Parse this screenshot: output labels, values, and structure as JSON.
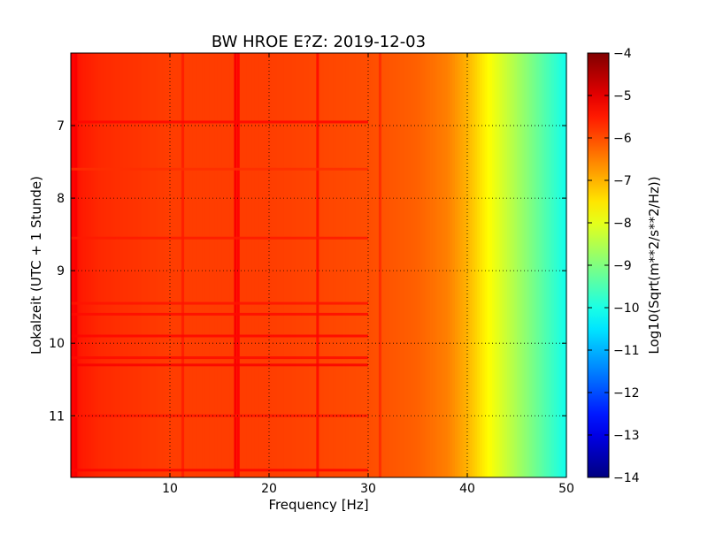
{
  "chart_data": {
    "type": "heatmap",
    "title": "BW HROE E?Z: 2019-12-03",
    "xlabel": "Frequency [Hz]",
    "ylabel": "Lokalzeit (UTC + 1 Stunde)",
    "xlim": [
      0,
      50
    ],
    "ylim": [
      11.85,
      6.0
    ],
    "x_ticks": [
      10,
      20,
      30,
      40,
      50
    ],
    "y_ticks": [
      7,
      8,
      9,
      10,
      11
    ],
    "grid": true,
    "colormap": "jet",
    "colorbar": {
      "label": "Log10(Sqrt(m**2/s**2/Hz))",
      "range": [
        -14,
        -4
      ],
      "ticks": [
        -4,
        -5,
        -6,
        -7,
        -8,
        -9,
        -10,
        -11,
        -12,
        -13,
        -14
      ]
    },
    "frequency_profile": {
      "freq_hz": [
        0,
        1,
        3,
        10,
        20,
        30,
        35,
        38,
        40,
        42,
        44,
        46,
        48,
        50
      ],
      "log_value": [
        -5.2,
        -5.5,
        -5.65,
        -5.85,
        -5.85,
        -6.0,
        -6.2,
        -6.5,
        -7.0,
        -7.7,
        -8.3,
        -8.9,
        -9.5,
        -10.1
      ]
    },
    "spectral_lines": [
      {
        "freq_hz": 0.5,
        "log_value": -5.2
      },
      {
        "freq_hz": 11.3,
        "log_value": -5.55
      },
      {
        "freq_hz": 16.6,
        "log_value": -5.2
      },
      {
        "freq_hz": 16.9,
        "log_value": -5.3
      },
      {
        "freq_hz": 24.9,
        "log_value": -5.4
      },
      {
        "freq_hz": 31.2,
        "log_value": -5.7
      }
    ],
    "time_features": [
      {
        "time_h": 6.95,
        "log_value": -5.3
      },
      {
        "time_h": 7.6,
        "log_value": -5.7
      },
      {
        "time_h": 8.55,
        "log_value": -5.5
      },
      {
        "time_h": 9.45,
        "log_value": -5.45
      },
      {
        "time_h": 9.6,
        "log_value": -5.35
      },
      {
        "time_h": 9.9,
        "log_value": -5.3
      },
      {
        "time_h": 10.2,
        "log_value": -5.35
      },
      {
        "time_h": 10.3,
        "log_value": -5.2
      },
      {
        "time_h": 11.0,
        "log_value": -5.45
      },
      {
        "time_h": 11.75,
        "log_value": -5.3
      }
    ]
  }
}
